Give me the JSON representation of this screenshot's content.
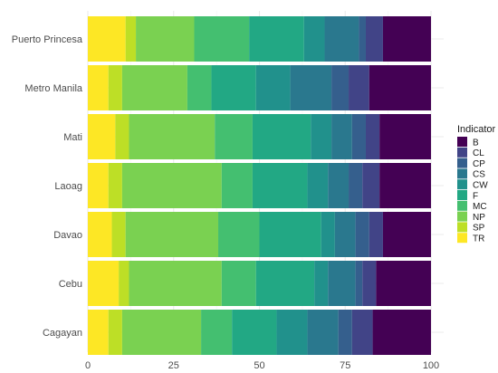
{
  "chart_data": {
    "type": "bar",
    "orientation": "horizontal",
    "stacked": true,
    "title": "",
    "xlabel": "",
    "ylabel": "",
    "xlim": [
      0,
      100
    ],
    "x_ticks": [
      0,
      25,
      50,
      75,
      100
    ],
    "grid": true,
    "legend_position": "right",
    "legend_title": "Indicator",
    "categories": [
      "Puerto Princesa",
      "Metro Manila",
      "Mati",
      "Laoag",
      "Davao",
      "Cebu",
      "Cagayan"
    ],
    "series": [
      {
        "name": "TR",
        "color": "#fde725",
        "values": [
          11,
          6,
          8,
          6,
          7,
          9,
          6
        ]
      },
      {
        "name": "SP",
        "color": "#bddf26",
        "values": [
          3,
          4,
          4,
          4,
          4,
          3,
          4
        ]
      },
      {
        "name": "NP",
        "color": "#7ad151",
        "values": [
          17,
          19,
          25,
          29,
          27,
          27,
          23
        ]
      },
      {
        "name": "MC",
        "color": "#44bf70",
        "values": [
          16,
          7,
          11,
          9,
          12,
          10,
          9
        ]
      },
      {
        "name": "F",
        "color": "#22a884",
        "values": [
          16,
          13,
          17,
          16,
          18,
          17,
          13
        ]
      },
      {
        "name": "CW",
        "color": "#21918c",
        "values": [
          6,
          10,
          6,
          6,
          4,
          4,
          9
        ]
      },
      {
        "name": "CS",
        "color": "#2a788e",
        "values": [
          10,
          12,
          6,
          6,
          6,
          8,
          9
        ]
      },
      {
        "name": "CP",
        "color": "#355f8d",
        "values": [
          2,
          5,
          4,
          4,
          4,
          2,
          4
        ]
      },
      {
        "name": "CL",
        "color": "#414487",
        "values": [
          5,
          6,
          4,
          5,
          4,
          4,
          6
        ]
      },
      {
        "name": "B",
        "color": "#440154",
        "values": [
          14,
          18,
          15,
          15,
          14,
          16,
          17
        ]
      }
    ],
    "legend_order": [
      "B",
      "CL",
      "CP",
      "CS",
      "CW",
      "F",
      "MC",
      "NP",
      "SP",
      "TR"
    ]
  }
}
